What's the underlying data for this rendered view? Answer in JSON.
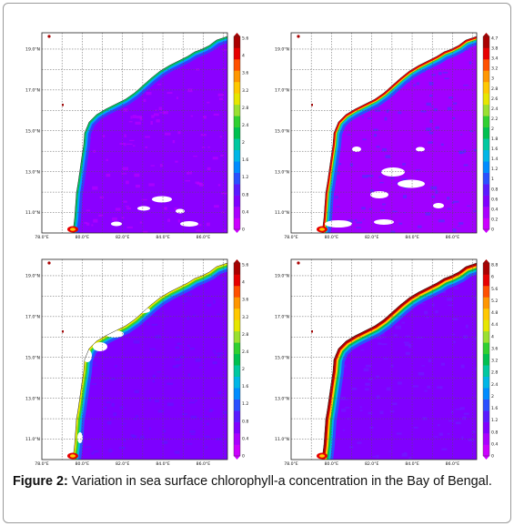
{
  "figure": {
    "caption_label": "Figure 2:",
    "caption_text": "Variation in sea surface chlorophyll-a concentration in the Bay of Bengal."
  },
  "colors": {
    "sea": "#8b00ff",
    "land": "#ffffff",
    "grid": "#555555",
    "colorbar": [
      "#cc00ff",
      "#aa00ff",
      "#8000ff",
      "#5a1aff",
      "#2a50ff",
      "#008cff",
      "#00b6e6",
      "#00c8a0",
      "#00c050",
      "#30d030",
      "#9ae030",
      "#e6e600",
      "#ffc800",
      "#ff9600",
      "#ff5000",
      "#e60000",
      "#aa0000"
    ]
  },
  "axes": {
    "lat_labels": [
      "19.0°N",
      "17.0°N",
      "15.0°N",
      "13.0°N",
      "11.0°N"
    ],
    "lon_labels": [
      "78.0°E",
      "80.0°E",
      "82.0°E",
      "84.0°E",
      "86.0°E"
    ]
  },
  "panels": [
    {
      "id": "top-left",
      "colorbar_ticks": [
        "5.6",
        "4",
        "3.6",
        "3.2",
        "2.8",
        "2.4",
        "2",
        "1.6",
        "1.2",
        "0.8",
        "0.4",
        "0"
      ]
    },
    {
      "id": "top-right",
      "colorbar_ticks": [
        "4.7",
        "3.8",
        "3.4",
        "3.2",
        "3",
        "2.8",
        "2.6",
        "2.4",
        "2.2",
        "2",
        "1.8",
        "1.6",
        "1.4",
        "1.2",
        "1",
        "0.8",
        "0.6",
        "0.4",
        "0.2",
        "0"
      ]
    },
    {
      "id": "bottom-left",
      "colorbar_ticks": [
        "5.6",
        "4",
        "3.6",
        "3.2",
        "2.8",
        "2.4",
        "2",
        "1.6",
        "1.2",
        "0.8",
        "0.4",
        "0"
      ]
    },
    {
      "id": "bottom-right",
      "colorbar_ticks": [
        "8.8",
        "6",
        "5.6",
        "5.2",
        "4.8",
        "4.4",
        "4",
        "3.6",
        "3.2",
        "2.8",
        "2.4",
        "2",
        "1.6",
        "1.2",
        "0.8",
        "0.4",
        "0"
      ]
    }
  ]
}
